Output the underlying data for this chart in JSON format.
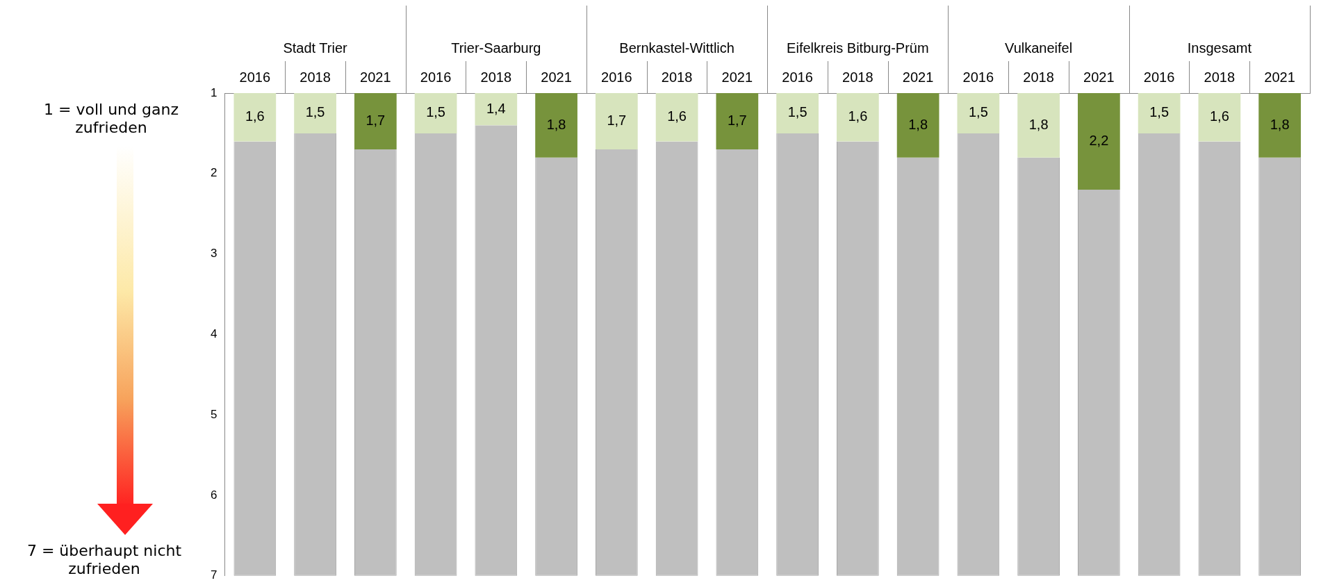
{
  "chart_data": {
    "type": "bar",
    "categories": [
      "2016",
      "2018",
      "2021",
      "2016",
      "2018",
      "2021",
      "2016",
      "2018",
      "2021",
      "2016",
      "2018",
      "2021",
      "2016",
      "2018",
      "2021",
      "2016",
      "2018",
      "2021"
    ],
    "ylim": [
      7,
      1
    ],
    "yticks": [
      1,
      2,
      3,
      4,
      5,
      6,
      7
    ],
    "grid": false,
    "legend": false,
    "series": [
      {
        "color": "#bfbfbf",
        "base": [
          1.6,
          1.5,
          1.7,
          1.5,
          1.4,
          1.8,
          1.7,
          1.6,
          1.7,
          1.5,
          1.6,
          1.8,
          1.5,
          1.8,
          2.2,
          1.5,
          1.6,
          1.8
        ],
        "values": [
          5.4,
          5.5,
          5.3,
          5.5,
          5.6,
          5.2,
          5.3,
          5.4,
          5.3,
          5.5,
          5.4,
          5.2,
          5.5,
          5.2,
          4.8,
          5.5,
          5.4,
          5.2
        ]
      },
      {
        "colors": [
          "#d7e4bd",
          "#d7e4bd",
          "#77933c",
          "#d7e4bd",
          "#d7e4bd",
          "#77933c",
          "#d7e4bd",
          "#d7e4bd",
          "#77933c",
          "#d7e4bd",
          "#d7e4bd",
          "#77933c",
          "#d7e4bd",
          "#d7e4bd",
          "#77933c",
          "#d7e4bd",
          "#d7e4bd",
          "#77933c"
        ],
        "values": [
          1.6,
          1.5,
          1.7,
          1.5,
          1.4,
          1.8,
          1.7,
          1.6,
          1.7,
          1.5,
          1.6,
          1.8,
          1.5,
          1.8,
          2.2,
          1.5,
          1.6,
          1.8
        ],
        "value_labels": [
          "1,6",
          "1,5",
          "1,7",
          "1,5",
          "1,4",
          "1,8",
          "1,7",
          "1,6",
          "1,7",
          "1,5",
          "1,6",
          "1,8",
          "1,5",
          "1,8",
          "2,2",
          "1,5",
          "1,6",
          "1,8"
        ]
      }
    ],
    "annotations": [
      "1 = voll und ganz zufrieden",
      "7 = überhaupt nicht zufrieden",
      "Stadt Trier",
      "Trier-Saarburg",
      "Bernkastel-Wittlich",
      "Eifelkreis Bitburg-Prüm",
      "Vulkaneifel",
      "Insgesamt"
    ]
  }
}
